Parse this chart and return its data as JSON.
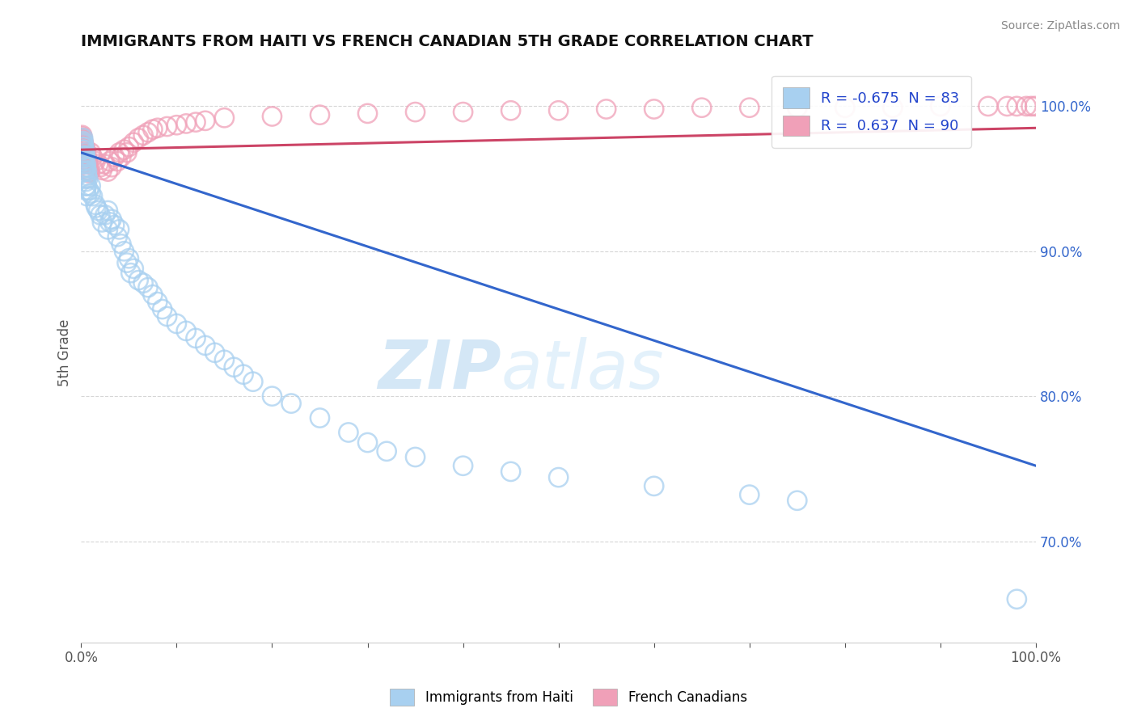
{
  "title": "IMMIGRANTS FROM HAITI VS FRENCH CANADIAN 5TH GRADE CORRELATION CHART",
  "source": "Source: ZipAtlas.com",
  "ylabel": "5th Grade",
  "legend_label_blue": "Immigrants from Haiti",
  "legend_label_pink": "French Canadians",
  "R_blue": -0.675,
  "N_blue": 83,
  "R_pink": 0.637,
  "N_pink": 90,
  "color_blue": "#a8d0f0",
  "color_pink": "#f0a0b8",
  "line_color_blue": "#3366cc",
  "line_color_pink": "#cc4466",
  "watermark_zip": "ZIP",
  "watermark_atlas": "atlas",
  "xlim": [
    0.0,
    1.0
  ],
  "ylim": [
    0.63,
    1.03
  ],
  "yticks": [
    0.7,
    0.8,
    0.9,
    1.0
  ],
  "blue_line_x0": 0.0,
  "blue_line_y0": 0.968,
  "blue_line_x1": 1.0,
  "blue_line_y1": 0.752,
  "pink_line_x0": 0.0,
  "pink_line_y0": 0.97,
  "pink_line_x1": 1.0,
  "pink_line_y1": 0.985,
  "blue_scatter_x": [
    0.003,
    0.004,
    0.005,
    0.002,
    0.006,
    0.004,
    0.003,
    0.005,
    0.002,
    0.007,
    0.003,
    0.004,
    0.002,
    0.006,
    0.003,
    0.004,
    0.005,
    0.002,
    0.006,
    0.003,
    0.004,
    0.003,
    0.005,
    0.002,
    0.006,
    0.003,
    0.004,
    0.002,
    0.005,
    0.003,
    0.01,
    0.012,
    0.015,
    0.018,
    0.02,
    0.008,
    0.022,
    0.016,
    0.028,
    0.01,
    0.03,
    0.025,
    0.035,
    0.04,
    0.032,
    0.028,
    0.038,
    0.042,
    0.045,
    0.05,
    0.055,
    0.048,
    0.052,
    0.06,
    0.065,
    0.07,
    0.075,
    0.08,
    0.085,
    0.09,
    0.1,
    0.11,
    0.12,
    0.13,
    0.14,
    0.15,
    0.16,
    0.17,
    0.18,
    0.2,
    0.22,
    0.25,
    0.28,
    0.3,
    0.32,
    0.35,
    0.4,
    0.45,
    0.5,
    0.6,
    0.7,
    0.75,
    0.98
  ],
  "blue_scatter_y": [
    0.97,
    0.965,
    0.96,
    0.975,
    0.955,
    0.968,
    0.972,
    0.958,
    0.978,
    0.95,
    0.962,
    0.966,
    0.974,
    0.952,
    0.964,
    0.956,
    0.948,
    0.976,
    0.945,
    0.96,
    0.958,
    0.966,
    0.942,
    0.972,
    0.938,
    0.962,
    0.95,
    0.97,
    0.945,
    0.955,
    0.945,
    0.938,
    0.932,
    0.928,
    0.925,
    0.942,
    0.92,
    0.93,
    0.915,
    0.94,
    0.92,
    0.925,
    0.918,
    0.915,
    0.922,
    0.928,
    0.91,
    0.905,
    0.9,
    0.895,
    0.888,
    0.892,
    0.885,
    0.88,
    0.878,
    0.875,
    0.87,
    0.865,
    0.86,
    0.855,
    0.85,
    0.845,
    0.84,
    0.835,
    0.83,
    0.825,
    0.82,
    0.815,
    0.81,
    0.8,
    0.795,
    0.785,
    0.775,
    0.768,
    0.762,
    0.758,
    0.752,
    0.748,
    0.744,
    0.738,
    0.732,
    0.728,
    0.66
  ],
  "pink_scatter_x": [
    0.001,
    0.002,
    0.003,
    0.001,
    0.004,
    0.005,
    0.002,
    0.006,
    0.003,
    0.007,
    0.002,
    0.004,
    0.001,
    0.008,
    0.003,
    0.002,
    0.005,
    0.001,
    0.006,
    0.003,
    0.004,
    0.002,
    0.007,
    0.001,
    0.009,
    0.003,
    0.005,
    0.002,
    0.004,
    0.001,
    0.006,
    0.003,
    0.008,
    0.002,
    0.004,
    0.001,
    0.005,
    0.003,
    0.007,
    0.002,
    0.01,
    0.012,
    0.015,
    0.018,
    0.02,
    0.022,
    0.025,
    0.028,
    0.03,
    0.032,
    0.035,
    0.038,
    0.04,
    0.042,
    0.045,
    0.048,
    0.05,
    0.055,
    0.06,
    0.065,
    0.07,
    0.075,
    0.08,
    0.09,
    0.1,
    0.11,
    0.12,
    0.13,
    0.15,
    0.2,
    0.25,
    0.3,
    0.35,
    0.4,
    0.45,
    0.5,
    0.55,
    0.6,
    0.65,
    0.7,
    0.75,
    0.8,
    0.85,
    0.9,
    0.95,
    0.97,
    0.98,
    0.99,
    0.995,
    0.999
  ],
  "pink_scatter_y": [
    0.978,
    0.975,
    0.972,
    0.98,
    0.97,
    0.968,
    0.976,
    0.965,
    0.973,
    0.962,
    0.974,
    0.971,
    0.977,
    0.96,
    0.969,
    0.973,
    0.964,
    0.978,
    0.962,
    0.967,
    0.971,
    0.975,
    0.958,
    0.979,
    0.955,
    0.968,
    0.963,
    0.974,
    0.966,
    0.977,
    0.961,
    0.97,
    0.954,
    0.973,
    0.967,
    0.978,
    0.96,
    0.971,
    0.956,
    0.974,
    0.968,
    0.965,
    0.962,
    0.96,
    0.958,
    0.956,
    0.96,
    0.955,
    0.962,
    0.958,
    0.965,
    0.962,
    0.968,
    0.965,
    0.97,
    0.968,
    0.972,
    0.975,
    0.978,
    0.98,
    0.982,
    0.984,
    0.985,
    0.986,
    0.987,
    0.988,
    0.989,
    0.99,
    0.992,
    0.993,
    0.994,
    0.995,
    0.996,
    0.996,
    0.997,
    0.997,
    0.998,
    0.998,
    0.999,
    0.999,
    0.999,
    0.999,
    0.999,
    1.0,
    1.0,
    1.0,
    1.0,
    1.0,
    1.0,
    1.0
  ]
}
